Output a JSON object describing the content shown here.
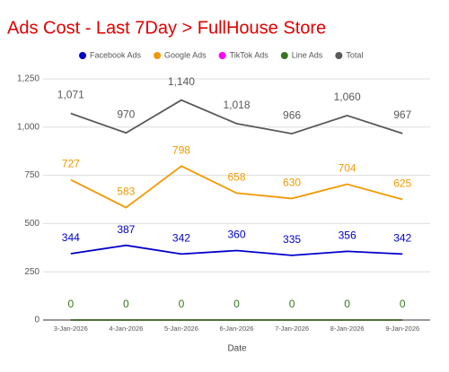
{
  "chart_data": {
    "type": "line",
    "title": "Ads Cost - Last 7Day > FullHouse Store",
    "x_label": "Date",
    "categories": [
      "3-Jan-2026",
      "4-Jan-2026",
      "5-Jan-2026",
      "6-Jan-2026",
      "7-Jan-2026",
      "8-Jan-2026",
      "9-Jan-2026"
    ],
    "series": [
      {
        "name": "Facebook Ads",
        "color": "#0000cc",
        "values": [
          344,
          387,
          342,
          360,
          335,
          356,
          342
        ],
        "show_labels": true
      },
      {
        "name": "Google Ads",
        "color": "#f29900",
        "values": [
          727,
          583,
          798,
          658,
          630,
          704,
          625
        ],
        "show_labels": true
      },
      {
        "name": "TikTok Ads",
        "color": "#ff00ff",
        "values": [
          0,
          0,
          0,
          0,
          0,
          0,
          0
        ],
        "show_labels": false
      },
      {
        "name": "Line Ads",
        "color": "#38761d",
        "values": [
          0,
          0,
          0,
          0,
          0,
          0,
          0
        ],
        "show_labels": true
      },
      {
        "name": "Total",
        "color": "#595959",
        "values": [
          1071,
          970,
          1140,
          1018,
          966,
          1060,
          967
        ],
        "show_labels": true,
        "value_labels": [
          "1,071",
          "970",
          "1,140",
          "1,018",
          "966",
          "1,060",
          "967"
        ]
      }
    ],
    "ylim": [
      0,
      1250
    ],
    "yticks": [
      0,
      250,
      500,
      750,
      {
        "value": 1000,
        "label": "1,000"
      },
      {
        "value": 1250,
        "label": "1,250"
      }
    ],
    "grid": true,
    "legend": "top"
  }
}
